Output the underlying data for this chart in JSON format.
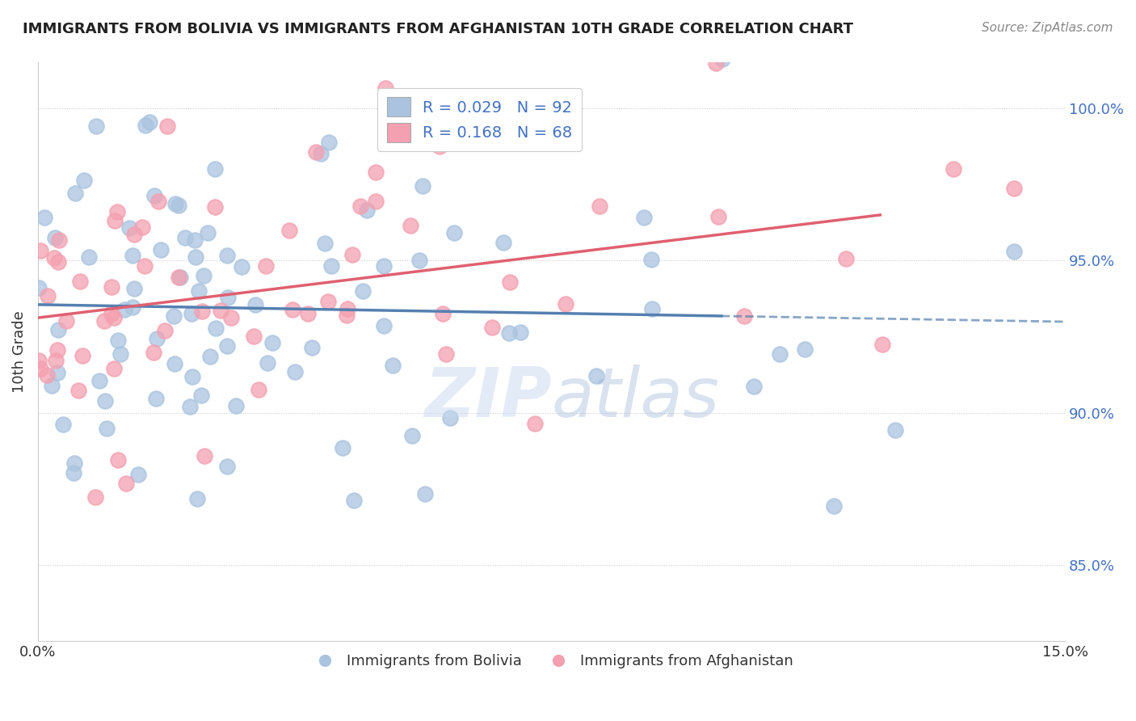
{
  "title": "IMMIGRANTS FROM BOLIVIA VS IMMIGRANTS FROM AFGHANISTAN 10TH GRADE CORRELATION CHART",
  "source": "Source: ZipAtlas.com",
  "ylabel": "10th Grade",
  "x_min": 0.0,
  "x_max": 15.0,
  "y_min": 82.5,
  "y_max": 101.5,
  "bolivia_color": "#aac4e0",
  "afghanistan_color": "#f4a0b0",
  "trend_bolivia_color": "#5580b0",
  "trend_afghanistan_color": "#e06070",
  "background_color": "#ffffff",
  "bolivia_R": 0.029,
  "bolivia_N": 92,
  "afghanistan_R": 0.168,
  "afghanistan_N": 68,
  "tick_color": "#4472c4",
  "label_color": "#333333"
}
